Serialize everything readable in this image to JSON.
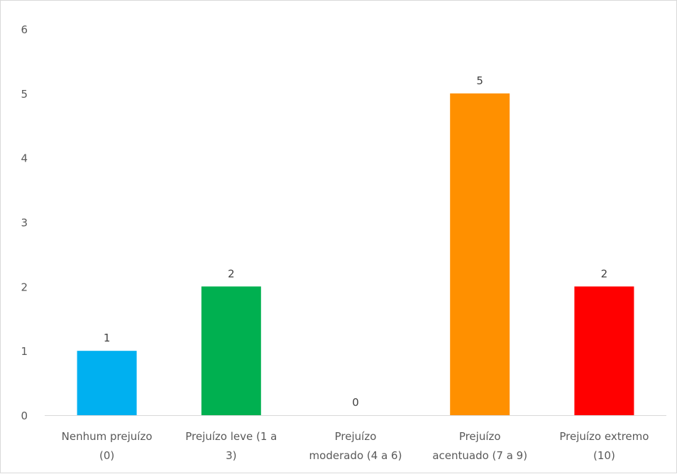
{
  "chart_data": {
    "type": "bar",
    "title": "",
    "xlabel": "",
    "ylabel": "",
    "ylim": [
      0,
      6
    ],
    "yticks": [
      "0",
      "1",
      "2",
      "3",
      "4",
      "5",
      "6"
    ],
    "grid": false,
    "legend": "none",
    "categories": [
      [
        "Nenhum prejuízo",
        "(0)"
      ],
      [
        "Prejuízo leve (1 a",
        "3)"
      ],
      [
        "Prejuízo",
        "moderado (4 a 6)"
      ],
      [
        "Prejuízo",
        "acentuado (7 a 9)"
      ],
      [
        "Prejuízo extremo",
        "(10)"
      ]
    ],
    "values": [
      1,
      2,
      0,
      5,
      2
    ],
    "data_labels": [
      "1",
      "2",
      "0",
      "5",
      "2"
    ],
    "colors": [
      "#00b0f0",
      "#00b050",
      "#ffc000",
      "#ff9000",
      "#ff0000"
    ],
    "axis_color": "#d9d9d9"
  }
}
